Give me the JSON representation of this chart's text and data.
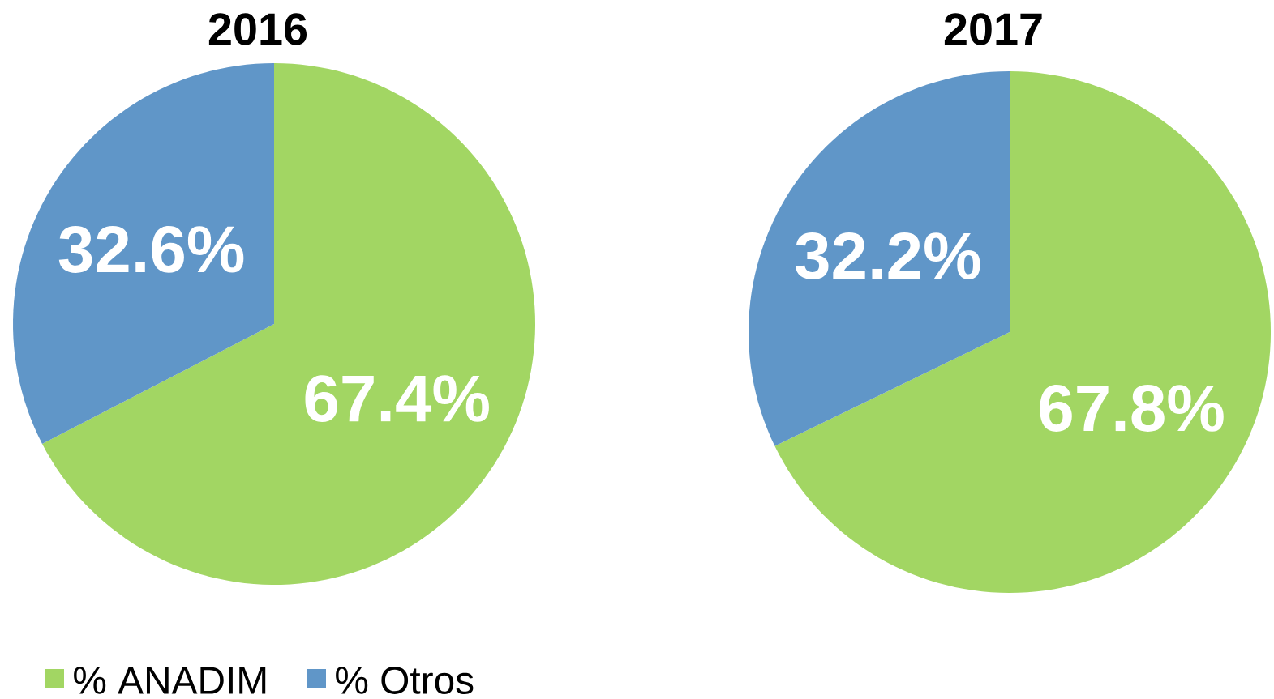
{
  "chart_data": [
    {
      "type": "pie",
      "title": "2016",
      "categories": [
        "% ANADIM",
        "% Otros"
      ],
      "values": [
        67.4,
        32.6
      ],
      "colors": [
        "#a2d663",
        "#6096c8"
      ],
      "value_labels": [
        "67.4%",
        "32.6%"
      ],
      "legend": "bottom left"
    },
    {
      "type": "pie",
      "title": "2017",
      "categories": [
        null,
        null
      ],
      "values": [
        67.8,
        32.2
      ],
      "colors": [
        "#a2d663",
        "#6096c8"
      ],
      "value_labels": [
        "67.8%",
        "32.2%"
      ],
      "legend": false
    }
  ]
}
